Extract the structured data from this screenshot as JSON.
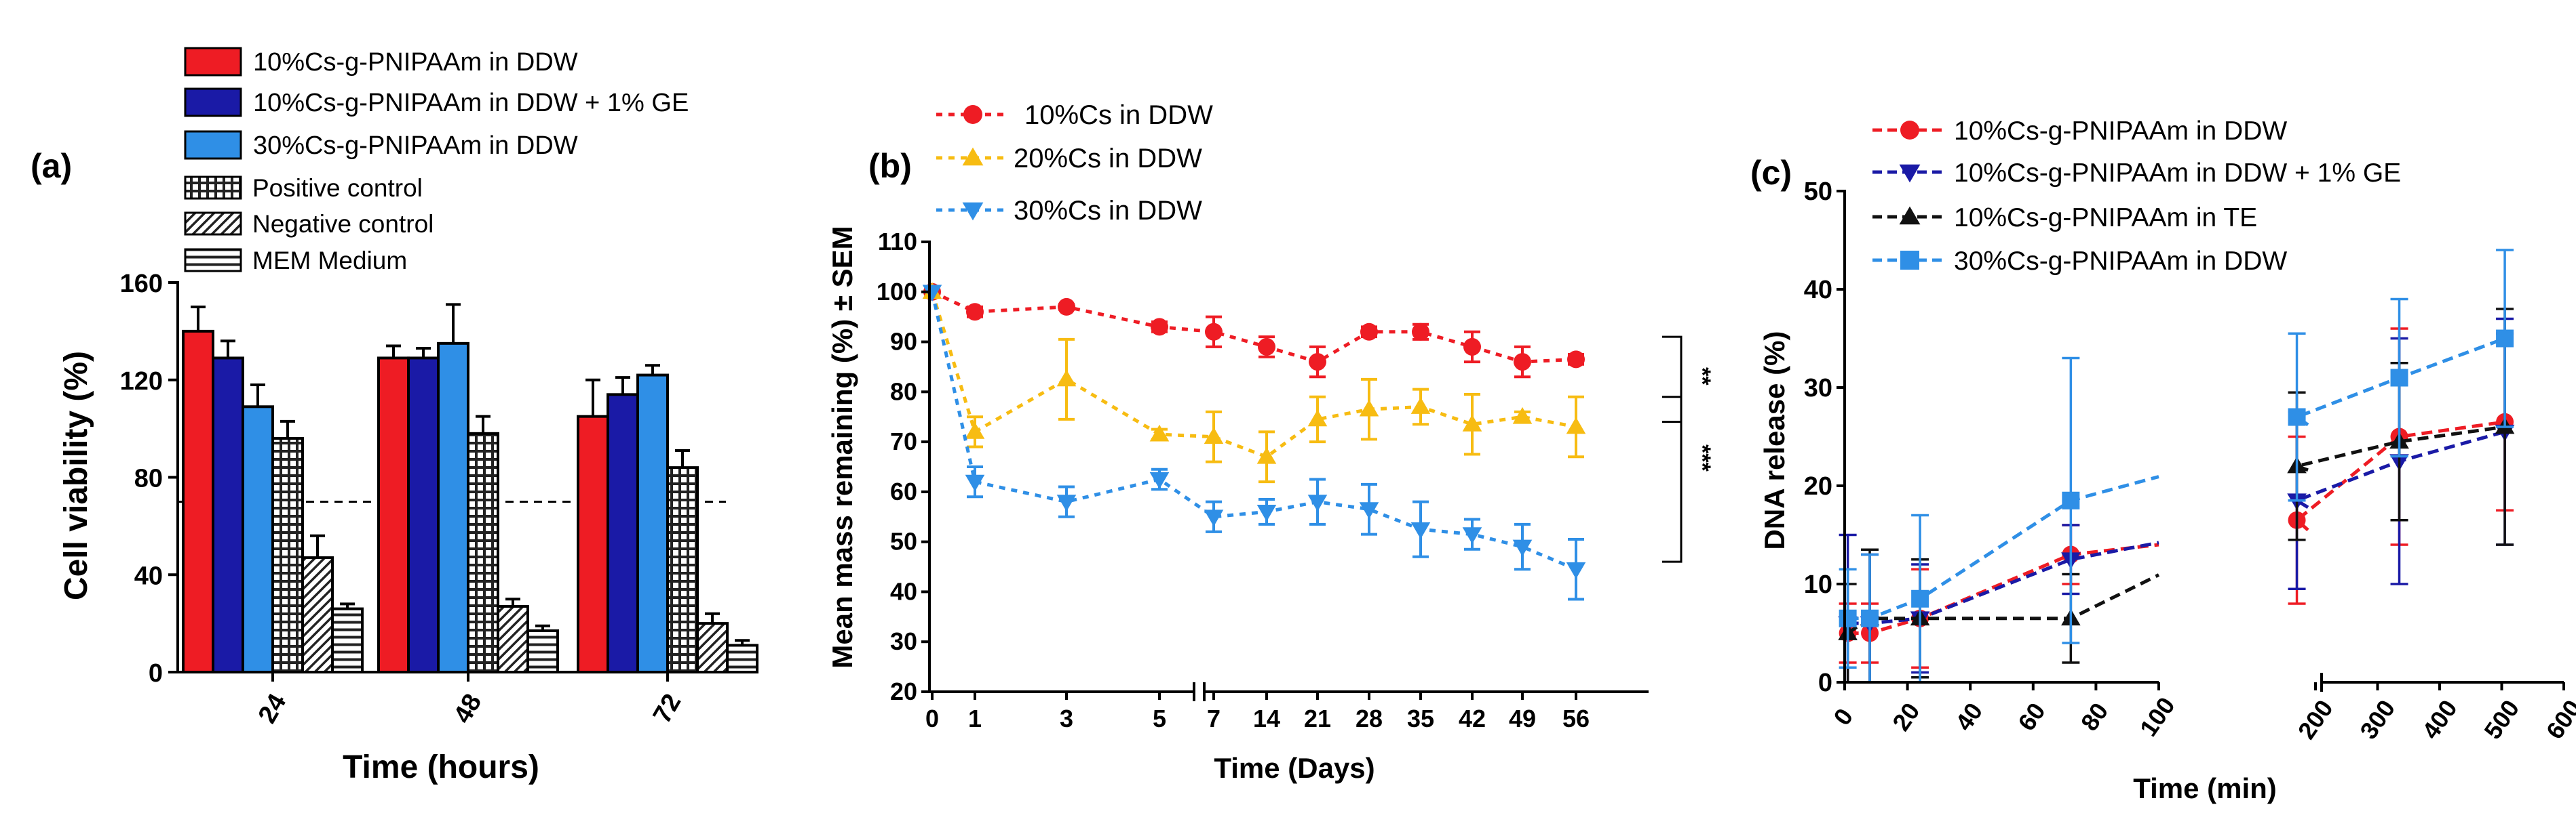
{
  "figure": {
    "panels": [
      "(a)",
      "(b)",
      "(c)"
    ]
  },
  "chart_data": [
    {
      "type": "bar",
      "panel": "(a)",
      "title": "",
      "xlabel": "Time (hours)",
      "ylabel": "Cell viability (%)",
      "ylim": [
        0,
        160
      ],
      "yticks": [
        "0",
        "40",
        "80",
        "120",
        "160"
      ],
      "categories": [
        "24",
        "48",
        "72"
      ],
      "reference_line": 70,
      "legend": [
        "10%Cs-g-PNIPAAm in DDW",
        "10%Cs-g-PNIPAAm in DDW + 1% GE",
        "30%Cs-g-PNIPAAm in DDW",
        "Positive control",
        "Negative control",
        "MEM Medium"
      ],
      "series": [
        {
          "name": "10%Cs-g-PNIPAAm in DDW",
          "color": "#ee1c24",
          "pattern": "solid",
          "values": [
            140,
            129,
            105
          ],
          "errors": [
            10,
            5,
            15
          ]
        },
        {
          "name": "10%Cs-g-PNIPAAm in DDW + 1% GE",
          "color": "#1a1aa6",
          "pattern": "solid",
          "values": [
            129,
            129,
            114
          ],
          "errors": [
            7,
            4,
            7
          ]
        },
        {
          "name": "30%Cs-g-PNIPAAm in DDW",
          "color": "#2f8fe6",
          "pattern": "solid",
          "values": [
            109,
            135,
            122
          ],
          "errors": [
            9,
            16,
            4
          ]
        },
        {
          "name": "Positive control",
          "color": "#ffffff",
          "pattern": "grid",
          "values": [
            96,
            98,
            84
          ],
          "errors": [
            7,
            7,
            7
          ]
        },
        {
          "name": "Negative control",
          "color": "#ffffff",
          "pattern": "diagonal",
          "values": [
            47,
            27,
            20
          ],
          "errors": [
            9,
            3,
            4
          ]
        },
        {
          "name": "MEM Medium",
          "color": "#ffffff",
          "pattern": "horizontal",
          "values": [
            26,
            17,
            11
          ],
          "errors": [
            2,
            2,
            2
          ]
        }
      ]
    },
    {
      "type": "line",
      "panel": "(b)",
      "title": "",
      "xlabel": "Time (Days)",
      "ylabel": "Mean mass remaining (%) ± SEM",
      "ylim": [
        20,
        110
      ],
      "yticks": [
        "20",
        "30",
        "40",
        "50",
        "60",
        "70",
        "80",
        "90",
        "100",
        "110"
      ],
      "x": [
        "0",
        "1",
        "3",
        "5",
        "7",
        "14",
        "21",
        "28",
        "35",
        "42",
        "49",
        "56"
      ],
      "significance": [
        "**",
        "***"
      ],
      "series": [
        {
          "name": "10%Cs in DDW",
          "color": "#ee1c24",
          "marker": "circle",
          "values": [
            100,
            96,
            97,
            93,
            92,
            89,
            86,
            92,
            92,
            89,
            86,
            86.5
          ],
          "errors": [
            0,
            1,
            0.5,
            1,
            3,
            2,
            3,
            1,
            1.5,
            3,
            3,
            1
          ]
        },
        {
          "name": "20%Cs in DDW",
          "color": "#f7bc12",
          "marker": "triangle-up",
          "values": [
            100,
            72,
            82.5,
            71.5,
            71,
            67,
            74.5,
            76.5,
            77,
            73.5,
            75,
            73
          ],
          "errors": [
            0,
            3,
            8,
            1,
            5,
            5,
            4.5,
            6,
            3.5,
            6,
            1,
            6
          ]
        },
        {
          "name": "30%Cs in DDW",
          "color": "#2f8fe6",
          "marker": "triangle-down",
          "values": [
            100,
            62,
            58,
            62.5,
            55,
            56,
            58,
            56.5,
            52.5,
            51.5,
            49,
            44.5
          ],
          "errors": [
            0,
            3,
            3,
            2,
            3,
            2.5,
            4.5,
            5,
            5.5,
            3,
            4.5,
            6
          ]
        }
      ]
    },
    {
      "type": "line",
      "panel": "(c)",
      "title": "",
      "xlabel": "Time (min)",
      "ylabel": "DNA release (%)",
      "ylim": [
        0,
        50
      ],
      "yticks": [
        "0",
        "10",
        "20",
        "30",
        "40",
        "50"
      ],
      "xticks_left": [
        "0",
        "20",
        "40",
        "60",
        "80",
        "100"
      ],
      "xticks_right": [
        "200",
        "300",
        "400",
        "500",
        "600"
      ],
      "x_break": [
        100,
        160
      ],
      "x": [
        1,
        8,
        24,
        72,
        170,
        335,
        505
      ],
      "series": [
        {
          "name": "10%Cs-g-PNIPAAm in DDW",
          "color": "#ee1c24",
          "marker": "circle",
          "values": [
            5,
            5,
            6.5,
            13,
            16.5,
            25,
            26.5
          ],
          "errors": [
            3,
            3,
            5,
            3,
            8.5,
            11,
            9
          ]
        },
        {
          "name": "10%Cs-g-PNIPAAm in DDW + 1% GE",
          "color": "#1a1aa6",
          "marker": "triangle-down",
          "values": [
            6,
            6,
            6.5,
            12.5,
            18.5,
            22.5,
            25.5
          ],
          "errors": [
            9,
            7,
            5.5,
            3.5,
            9,
            12.5,
            11.5
          ]
        },
        {
          "name": "10%Cs-g-PNIPAAm in TE",
          "color": "#111111",
          "marker": "triangle-up",
          "values": [
            5,
            6.5,
            6.5,
            6.5,
            22,
            24.5,
            26
          ],
          "errors": [
            5,
            7,
            6,
            4.5,
            7.5,
            8,
            12
          ]
        },
        {
          "name": "30%Cs-g-PNIPAAm in DDW",
          "color": "#2f8fe6",
          "marker": "square",
          "values": [
            6.5,
            6.5,
            8.5,
            18.5,
            27,
            31,
            35
          ],
          "errors": [
            5,
            6.5,
            8.5,
            14.5,
            8.5,
            8,
            9
          ]
        }
      ]
    }
  ]
}
